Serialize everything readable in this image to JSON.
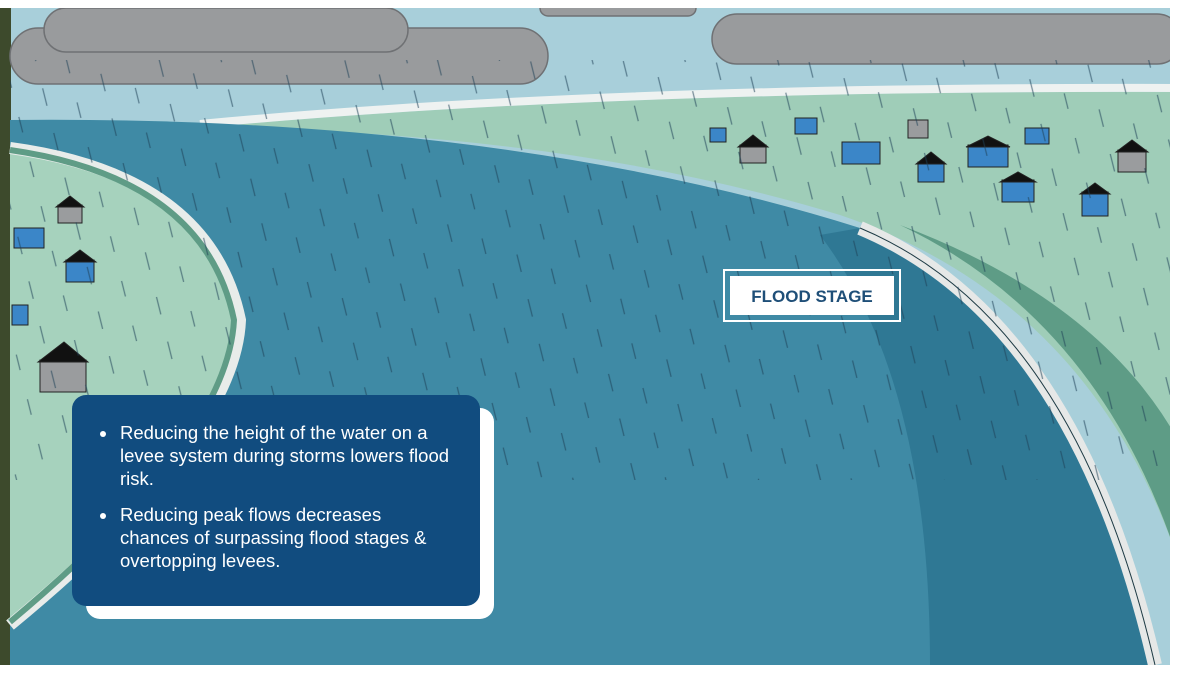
{
  "flood_stage_label": "FLOOD STAGE",
  "bullets": [
    "Reducing the height of the water on a levee system during storms lowers flood risk.",
    "Reducing peak flows decreases chances of surpassing flood stages & overtopping levees."
  ]
}
